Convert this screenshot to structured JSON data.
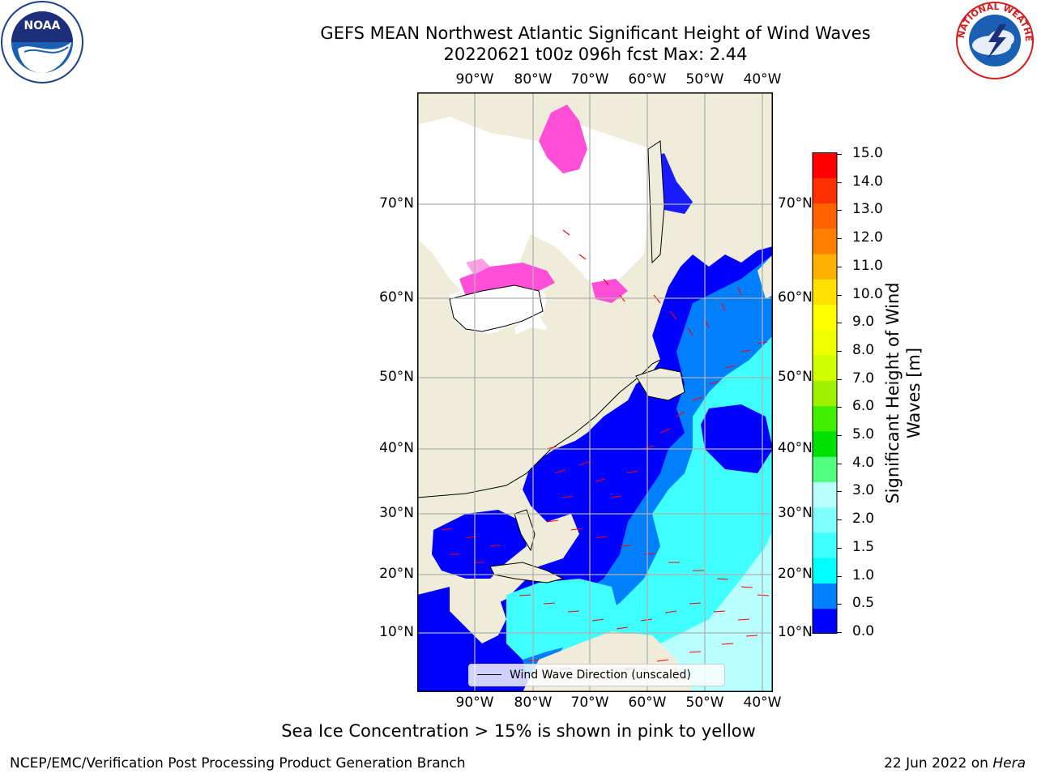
{
  "header": {
    "title_line1": "GEFS MEAN Northwest Atlantic Significant Height of Wind Waves",
    "title_line2": "20220621 t00z 096h fcst   Max: 2.44"
  },
  "map": {
    "top_lon_labels": [
      "90°W",
      "80°W",
      "70°W",
      "60°W",
      "50°W",
      "40°W"
    ],
    "bottom_lon_labels": [
      "90°W",
      "80°W",
      "70°W",
      "60°W",
      "50°W",
      "40°W"
    ],
    "lat_labels": [
      "70°N",
      "60°N",
      "50°N",
      "40°N",
      "30°N",
      "20°N",
      "10°N"
    ],
    "legend_text": "Wind Wave Direction (unscaled)",
    "colors": {
      "land": "#efedd9",
      "ice_free_white": "#ffffff",
      "arrows": "#ff0000",
      "grid": "#b0b0b0"
    }
  },
  "colorbar": {
    "label": "Significant Height of Wind Waves [m]",
    "ticks": [
      "15.0",
      "14.0",
      "13.0",
      "12.0",
      "11.0",
      "10.0",
      "9.0",
      "8.0",
      "7.0",
      "6.0",
      "5.0",
      "4.0",
      "3.0",
      "2.0",
      "1.5",
      "1.0",
      "0.5",
      "0.0"
    ],
    "colors": [
      "#0000ff",
      "#0080ff",
      "#00ffff",
      "#40ffff",
      "#80ffff",
      "#b8ffff",
      "#50ff80",
      "#00e000",
      "#40f000",
      "#a0f000",
      "#d0ff00",
      "#f0ff00",
      "#ffff00",
      "#ffe000",
      "#ffb000",
      "#ff8000",
      "#ff6000",
      "#ff3000",
      "#ff0000"
    ]
  },
  "footer": {
    "caption": "Sea Ice Concentration > 15% is shown in pink to yellow",
    "credit_left": "NCEP/EMC/Verification Post Processing Product Generation Branch",
    "credit_date": "22 Jun 2022 on ",
    "credit_host": "Hera"
  },
  "logos": {
    "noaa": "NOAA",
    "nws": "NATIONAL WEATHER SERVICE"
  }
}
